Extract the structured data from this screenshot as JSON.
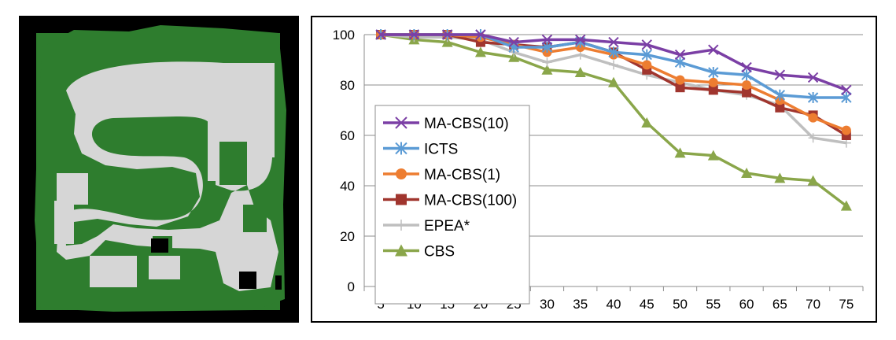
{
  "map": {
    "colors": {
      "background": "#000000",
      "free": "#d6d6d6",
      "obstacle": "#2e7d2e"
    }
  },
  "chart_data": {
    "type": "line",
    "title": "",
    "xlabel": "",
    "ylabel": "",
    "categories": [
      "5",
      "10",
      "15",
      "20",
      "25",
      "30",
      "35",
      "40",
      "45",
      "50",
      "55",
      "60",
      "65",
      "70",
      "75"
    ],
    "ylim": [
      0,
      100
    ],
    "yticks": [
      "0",
      "20",
      "40",
      "60",
      "80",
      "100"
    ],
    "grid": "horizontal",
    "legend_position": "left-center",
    "series": [
      {
        "name": "MA-CBS(10)",
        "color": "#7b3fa5",
        "marker": "x",
        "values": [
          100,
          100,
          100,
          100,
          97,
          98,
          98,
          97,
          96,
          92,
          94,
          87,
          84,
          83,
          78
        ]
      },
      {
        "name": "ICTS",
        "color": "#5b9bd5",
        "marker": "asterisk",
        "values": [
          100,
          100,
          100,
          100,
          95,
          95,
          97,
          93,
          92,
          89,
          85,
          84,
          76,
          75,
          75
        ]
      },
      {
        "name": "MA-CBS(1)",
        "color": "#ed7d31",
        "marker": "circle",
        "values": [
          100,
          100,
          100,
          99,
          96,
          93,
          95,
          92,
          88,
          82,
          81,
          80,
          74,
          67,
          62
        ]
      },
      {
        "name": "MA-CBS(100)",
        "color": "#a0352e",
        "marker": "square",
        "values": [
          100,
          100,
          100,
          97,
          96,
          95,
          97,
          93,
          86,
          79,
          78,
          77,
          71,
          68,
          60
        ]
      },
      {
        "name": "EPEA*",
        "color": "#bfbfbf",
        "marker": "plus",
        "values": [
          100,
          99,
          99,
          98,
          93,
          89,
          92,
          88,
          84,
          81,
          78,
          76,
          72,
          59,
          57
        ]
      },
      {
        "name": "CBS",
        "color": "#8aa64a",
        "marker": "triangle",
        "values": [
          100,
          98,
          97,
          93,
          91,
          86,
          85,
          81,
          65,
          53,
          52,
          45,
          43,
          42,
          32
        ]
      }
    ]
  }
}
